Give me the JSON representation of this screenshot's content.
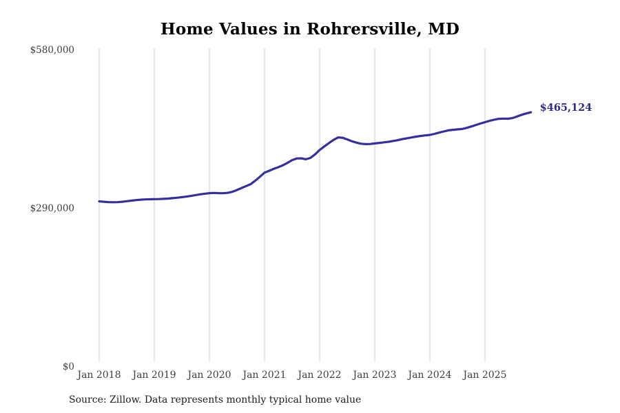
{
  "page": {
    "background": "#ffffff"
  },
  "chart_data": {
    "type": "line",
    "title": "Home Values in Rohrersville, MD",
    "series_name": "Monthly typical home value",
    "start_month": "2018-01",
    "end_month": "2025-11",
    "values": [
      302000,
      301200,
      300600,
      300300,
      300500,
      301200,
      302200,
      303200,
      304200,
      305000,
      305500,
      305800,
      306000,
      306200,
      306500,
      307000,
      307800,
      308600,
      309500,
      310700,
      312000,
      313500,
      314800,
      316000,
      317000,
      317300,
      317000,
      316800,
      317500,
      319500,
      322800,
      326500,
      330000,
      333500,
      340000,
      347000,
      354500,
      358000,
      361500,
      364500,
      368000,
      372500,
      377500,
      380500,
      380800,
      379000,
      381500,
      388000,
      396000,
      402500,
      408500,
      414500,
      419000,
      418500,
      415500,
      412000,
      409500,
      407500,
      406800,
      407000,
      408000,
      409000,
      410000,
      411000,
      412500,
      414000,
      416000,
      417500,
      419000,
      420500,
      421800,
      422800,
      423700,
      425500,
      427800,
      430000,
      432000,
      433000,
      433800,
      434500,
      436500,
      439000,
      441800,
      444500,
      447000,
      449500,
      451500,
      453200,
      453500,
      453300,
      454500,
      457500,
      460500,
      463000,
      465124
    ],
    "latest_value": 465124,
    "latest_value_label": "$465,124",
    "xticks": [
      "Jan 2018",
      "Jan 2019",
      "Jan 2020",
      "Jan 2021",
      "Jan 2022",
      "Jan 2023",
      "Jan 2024",
      "Jan 2025"
    ],
    "yticks": [
      {
        "label": "$0",
        "value": 0
      },
      {
        "label": "$290,000",
        "value": 290000
      },
      {
        "label": "$580,000",
        "value": 580000
      }
    ],
    "ylim": [
      0,
      580000
    ],
    "grid": "vertical-only",
    "legend": "none",
    "line_color": "#342f9f",
    "label_color": "#2d2b87",
    "gridline_color": "#cccccc",
    "source_note": "Source: Zillow. Data represents monthly typical home value"
  }
}
